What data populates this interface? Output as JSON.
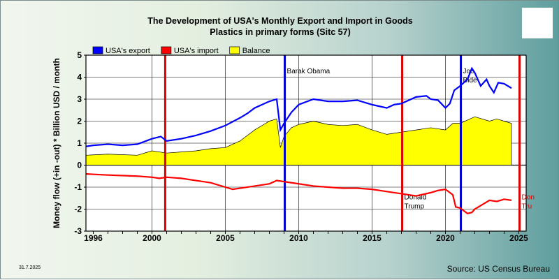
{
  "title_line1": "The Development of USA's Monthly Export and Import in Goods",
  "title_line2": "Plastics in primary forms (Sitc 57)",
  "source": "Source: US Census Bureau",
  "date": "31.7.2025",
  "colors": {
    "export": "#0000ff",
    "import": "#ff0000",
    "balance": "#ffff00",
    "plot_bg": "#ffffff",
    "president_blue": "#0000cc",
    "president_red": "#dd0000"
  },
  "chart_data": {
    "type": "line",
    "title": "The Development of USA's Monthly Export and Import in Goods Plastics in primary forms (Sitc 57)",
    "ylabel": "Money flow (+in -out) * Billion USD / month",
    "xlabel": "",
    "xlim": [
      1995.5,
      2025.5
    ],
    "ylim": [
      -3,
      5
    ],
    "grid": true,
    "legend_position": "top-left",
    "x_ticks": [
      {
        "value": 1996,
        "label": "1996"
      },
      {
        "value": 2000,
        "label": "2000"
      },
      {
        "value": 2005,
        "label": "2005"
      },
      {
        "value": 2010,
        "label": "2010"
      },
      {
        "value": 2015,
        "label": "2015"
      },
      {
        "value": 2020,
        "label": "2020"
      },
      {
        "value": 2025,
        "label": "2025"
      }
    ],
    "y_ticks": [
      -3,
      -2,
      -1,
      0,
      1,
      2,
      3,
      4,
      5
    ],
    "series": [
      {
        "name": "USA's export",
        "color": "#0000ff",
        "kind": "line",
        "x": [
          1995.5,
          1996,
          1997,
          1998,
          1999,
          2000,
          2000.6,
          2001,
          2002,
          2003,
          2004,
          2005,
          2006,
          2006.5,
          2007,
          2007.5,
          2008,
          2008.5,
          2008.75,
          2009,
          2009.5,
          2010,
          2011,
          2012,
          2013,
          2014,
          2015,
          2016,
          2016.5,
          2017,
          2018,
          2018.7,
          2019,
          2019.5,
          2020,
          2020.3,
          2020.6,
          2021,
          2021.5,
          2021.8,
          2022,
          2022.4,
          2022.8,
          2023,
          2023.3,
          2023.6,
          2024,
          2024.5
        ],
        "y": [
          0.85,
          0.9,
          0.95,
          0.9,
          0.95,
          1.2,
          1.3,
          1.1,
          1.2,
          1.35,
          1.55,
          1.8,
          2.15,
          2.35,
          2.6,
          2.75,
          2.9,
          3.0,
          1.6,
          1.9,
          2.4,
          2.75,
          3.0,
          2.9,
          2.9,
          2.95,
          2.75,
          2.6,
          2.75,
          2.8,
          3.1,
          3.15,
          3.0,
          2.95,
          2.6,
          2.8,
          3.4,
          3.6,
          3.9,
          4.4,
          4.2,
          3.6,
          3.9,
          3.6,
          3.3,
          3.75,
          3.7,
          3.5
        ]
      },
      {
        "name": "USA's import",
        "color": "#ff0000",
        "kind": "line",
        "x": [
          1995.5,
          1997,
          1999,
          2000,
          2000.5,
          2001,
          2002,
          2003,
          2004,
          2005,
          2005.5,
          2006,
          2007,
          2008,
          2008.5,
          2009,
          2010,
          2011,
          2012,
          2013,
          2014,
          2015,
          2016,
          2017,
          2018,
          2019,
          2019.5,
          2020,
          2020.5,
          2020.7,
          2021,
          2021.5,
          2021.8,
          2022,
          2022.5,
          2023,
          2023.5,
          2024,
          2024.5
        ],
        "y": [
          -0.4,
          -0.45,
          -0.5,
          -0.55,
          -0.6,
          -0.55,
          -0.6,
          -0.7,
          -0.8,
          -1.0,
          -1.1,
          -1.05,
          -0.95,
          -0.85,
          -0.7,
          -0.75,
          -0.85,
          -0.95,
          -1.0,
          -1.05,
          -1.05,
          -1.1,
          -1.2,
          -1.3,
          -1.4,
          -1.25,
          -1.15,
          -1.1,
          -1.35,
          -1.9,
          -1.95,
          -2.2,
          -2.15,
          -2.0,
          -1.8,
          -1.6,
          -1.65,
          -1.55,
          -1.6
        ]
      },
      {
        "name": "Balance",
        "color": "#ffff00",
        "kind": "area",
        "x": [
          1995.5,
          1997,
          1999,
          2000,
          2001,
          2002,
          2003,
          2004,
          2005,
          2006,
          2007,
          2008,
          2008.5,
          2008.75,
          2009,
          2009.5,
          2010,
          2011,
          2012,
          2013,
          2014,
          2015,
          2016,
          2017,
          2018,
          2019,
          2020,
          2020.5,
          2021,
          2022,
          2023,
          2023.5,
          2024,
          2024.5
        ],
        "y": [
          0.45,
          0.5,
          0.45,
          0.65,
          0.55,
          0.6,
          0.65,
          0.75,
          0.8,
          1.1,
          1.6,
          2.0,
          2.1,
          0.8,
          1.3,
          1.7,
          1.85,
          2.0,
          1.85,
          1.8,
          1.85,
          1.6,
          1.4,
          1.5,
          1.6,
          1.7,
          1.6,
          1.9,
          1.9,
          2.2,
          2.0,
          2.1,
          2.0,
          1.9
        ]
      }
    ],
    "presidents": [
      {
        "x": 2000.9,
        "color": "#dd0000",
        "label": []
      },
      {
        "x": 2009.05,
        "color": "#0000cc",
        "label": [
          "Barak Obama"
        ]
      },
      {
        "x": 2017.05,
        "color": "#dd0000",
        "label": [
          "Donald",
          "Trump"
        ]
      },
      {
        "x": 2021.05,
        "color": "#0000cc",
        "label": [
          "Joe",
          "Bide"
        ]
      },
      {
        "x": 2025.05,
        "color": "#dd0000",
        "label": [
          "Don",
          "Tru"
        ]
      }
    ]
  }
}
